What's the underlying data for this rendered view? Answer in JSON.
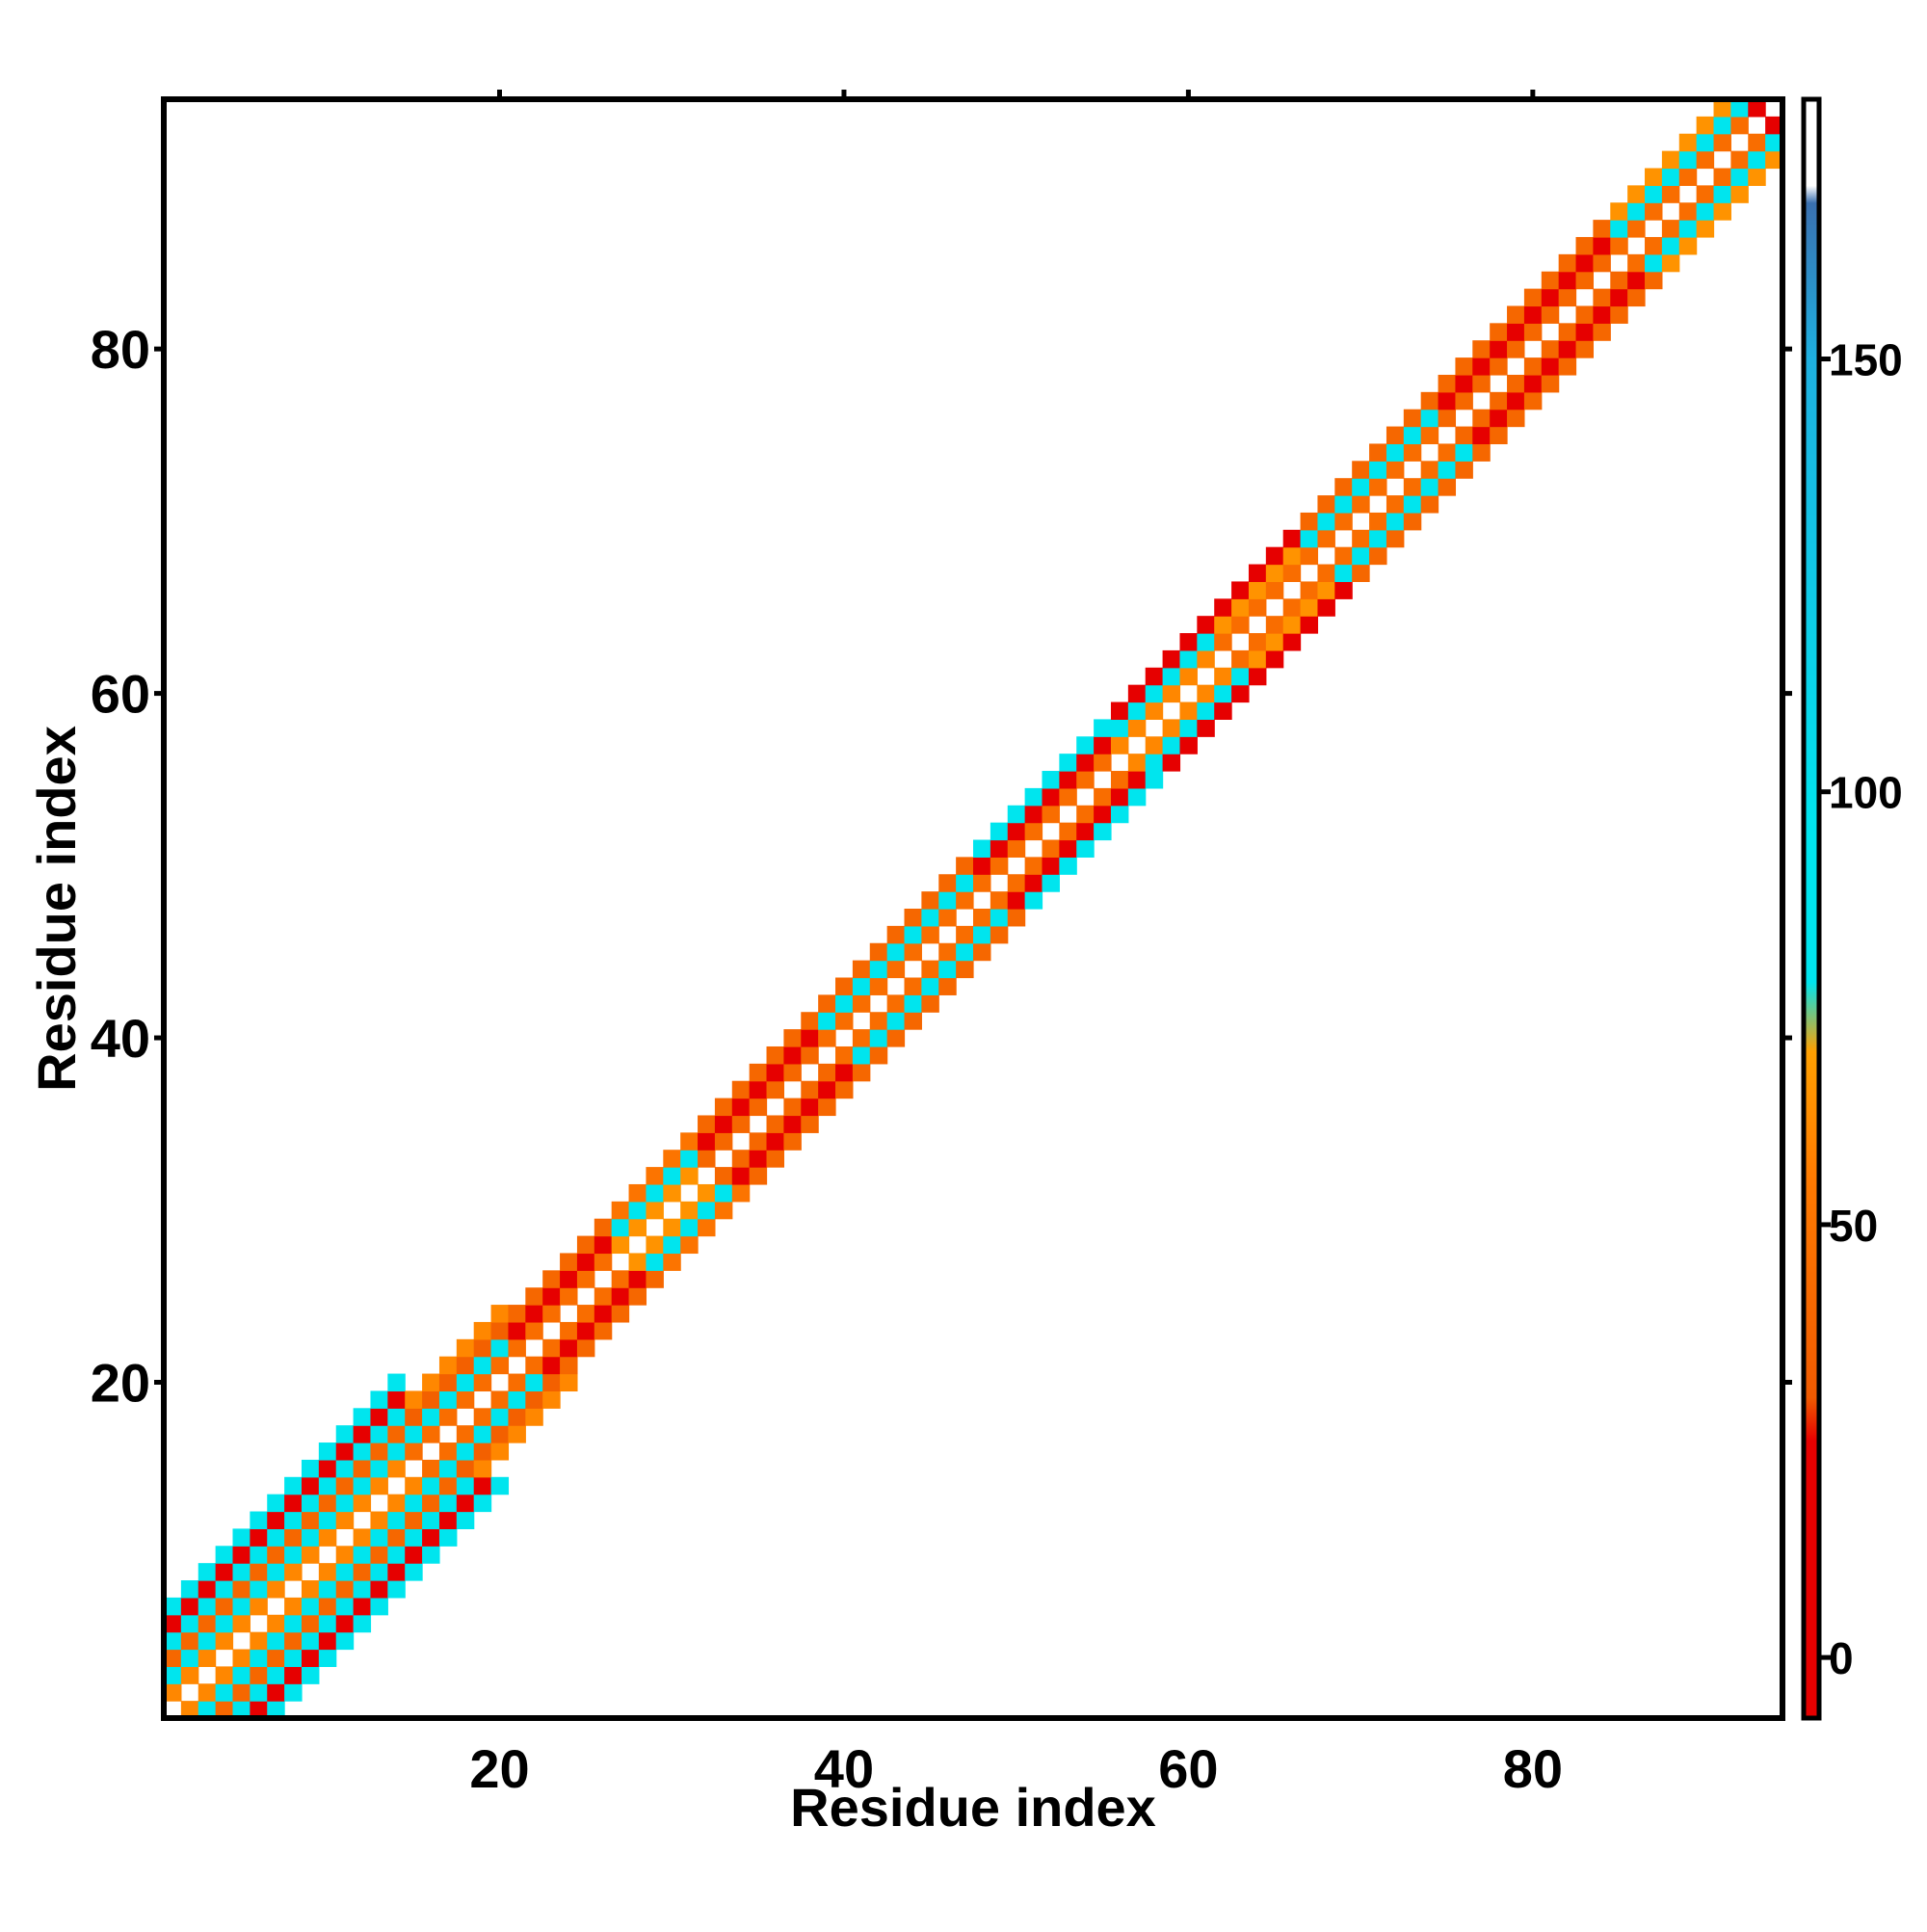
{
  "chart_data": {
    "type": "heatmap",
    "title": "",
    "xlabel": "Residue index",
    "ylabel": "Residue index",
    "xlim": [
      1,
      94
    ],
    "ylim": [
      1,
      94
    ],
    "x_ticks": [
      20,
      40,
      60,
      80
    ],
    "y_ticks": [
      20,
      40,
      60,
      80
    ],
    "x_tick_labels": [
      "20",
      "40",
      "60",
      "80"
    ],
    "y_tick_labels": [
      "20",
      "40",
      "60",
      "80"
    ],
    "colorbar": {
      "ticks": [
        0,
        50,
        100,
        150
      ],
      "tick_labels": [
        "0",
        "50",
        "100",
        "150"
      ],
      "range": [
        -7,
        180
      ],
      "stops": [
        {
          "value": -7,
          "color": "#e60000"
        },
        {
          "value": 25,
          "color": "#e60000"
        },
        {
          "value": 30,
          "color": "#f05a00"
        },
        {
          "value": 55,
          "color": "#ff7a00"
        },
        {
          "value": 70,
          "color": "#ffa000"
        },
        {
          "value": 78,
          "color": "#00e5ee"
        },
        {
          "value": 95,
          "color": "#00e5ee"
        },
        {
          "value": 150,
          "color": "#1eb0e0"
        },
        {
          "value": 168,
          "color": "#3a70b0"
        },
        {
          "value": 170,
          "color": "#ffffff"
        },
        {
          "value": 180,
          "color": "#ffffff"
        }
      ]
    },
    "grid": false,
    "legend": "right-colorbar",
    "matrix_size": 94,
    "diagonal_band": {
      "description_values": "symmetric band |i-j| = 1..6, values in degrees-like units (0-180)",
      "offset_values_by_segment": [
        {
          "residues": [
            1,
            14
          ],
          "offsets": {
            "1": 60,
            "2": 90,
            "3": 40,
            "4": 85,
            "5": 10,
            "6": 90
          }
        },
        {
          "residues": [
            15,
            20
          ],
          "offsets": {
            "1": 45,
            "2": 90,
            "3": 35,
            "4": 60
          }
        },
        {
          "residues": [
            21,
            26
          ],
          "offsets": {
            "1": 45,
            "2": 10,
            "3": 40
          }
        },
        {
          "residues": [
            27,
            31
          ],
          "offsets": {
            "1": 65,
            "2": 90,
            "3": 50
          }
        },
        {
          "residues": [
            32,
            38
          ],
          "offsets": {
            "1": 40,
            "2": 10,
            "3": 40
          }
        },
        {
          "residues": [
            39,
            47
          ],
          "offsets": {
            "1": 45,
            "2": 90,
            "3": 40
          }
        },
        {
          "residues": [
            48,
            55
          ],
          "offsets": {
            "1": 45,
            "2": 10,
            "3": 90
          }
        },
        {
          "residues": [
            56,
            61
          ],
          "offsets": {
            "1": 60,
            "2": 90,
            "3": 10
          }
        },
        {
          "residues": [
            62,
            66
          ],
          "offsets": {
            "1": 45,
            "2": 65,
            "3": 10
          }
        },
        {
          "residues": [
            67,
            74
          ],
          "offsets": {
            "1": 45,
            "2": 90,
            "3": 40
          }
        },
        {
          "residues": [
            75,
            84
          ],
          "offsets": {
            "1": 40,
            "2": 10,
            "3": 40
          }
        },
        {
          "residues": [
            85,
            92
          ],
          "offsets": {
            "1": 45,
            "2": 90,
            "3": 65
          }
        },
        {
          "residues": [
            93,
            94
          ],
          "offsets": {
            "1": 10,
            "2": 90
          }
        }
      ]
    }
  }
}
